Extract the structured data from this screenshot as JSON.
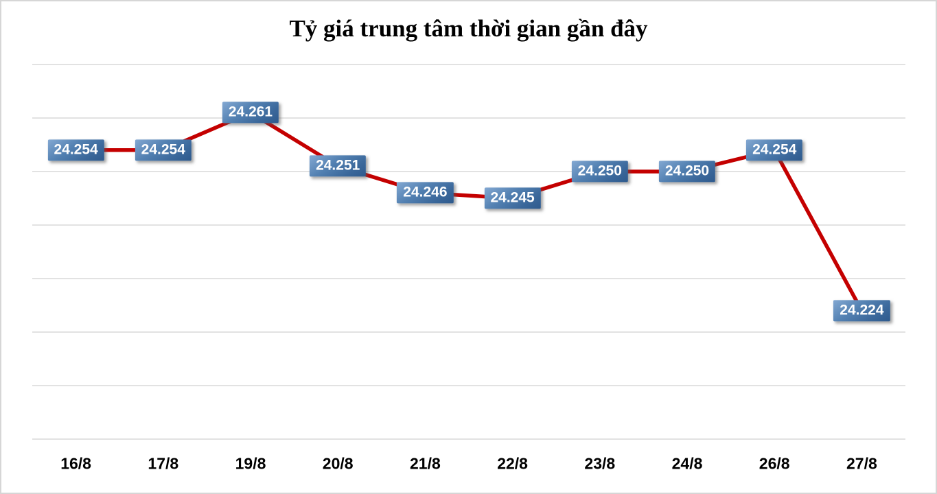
{
  "chart_data": {
    "type": "line",
    "title": "Tỷ giá trung tâm thời gian gần đây",
    "categories": [
      "16/8",
      "17/8",
      "19/8",
      "20/8",
      "21/8",
      "22/8",
      "23/8",
      "24/8",
      "26/8",
      "27/8"
    ],
    "values": [
      24254,
      24254,
      24261,
      24251,
      24246,
      24245,
      24250,
      24250,
      24254,
      24224
    ],
    "labels": [
      "24.254",
      "24.254",
      "24.261",
      "24.251",
      "24.246",
      "24.245",
      "24.250",
      "24.250",
      "24.254",
      "24.224"
    ],
    "xlabel": "",
    "ylabel": "",
    "ylim": [
      24200,
      24270
    ],
    "gridline_step": 10,
    "grid": true,
    "legend": "none",
    "colors": {
      "line": "#c40000",
      "gridline": "#d9d9d9",
      "border": "#d6d6d6",
      "label_box_top": "#83a8d2",
      "label_box_bottom": "#2e5a8d",
      "label_text": "#ffffff",
      "axis_text": "#000000",
      "title_text": "#000000",
      "background": "#ffffff"
    }
  }
}
